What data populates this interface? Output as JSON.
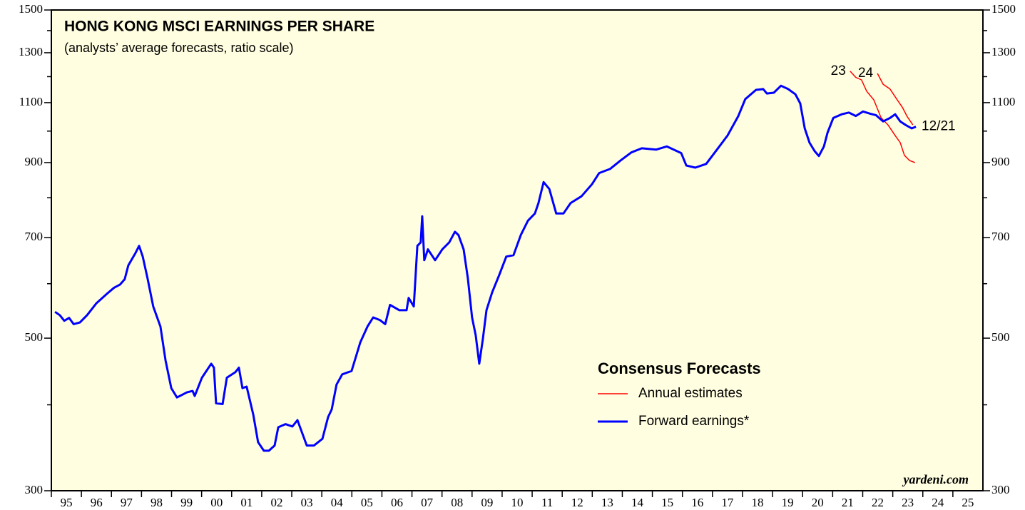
{
  "chart_data": {
    "type": "line",
    "title": "HONG KONG MSCI EARNINGS PER SHARE",
    "subtitle": "(analysts’ average forecasts, ratio scale)",
    "source": "yardeni.com",
    "legend_title": "Consensus Forecasts",
    "legend": "bottom-right",
    "log_scale": true,
    "background": "#fffee0",
    "xlim": [
      1995,
      2026
    ],
    "xticks": [
      {
        "value": 1995,
        "label": "95"
      },
      {
        "value": 1996,
        "label": "96"
      },
      {
        "value": 1997,
        "label": "97"
      },
      {
        "value": 1998,
        "label": "98"
      },
      {
        "value": 1999,
        "label": "99"
      },
      {
        "value": 2000,
        "label": "00"
      },
      {
        "value": 2001,
        "label": "01"
      },
      {
        "value": 2002,
        "label": "02"
      },
      {
        "value": 2003,
        "label": "03"
      },
      {
        "value": 2004,
        "label": "04"
      },
      {
        "value": 2005,
        "label": "05"
      },
      {
        "value": 2006,
        "label": "06"
      },
      {
        "value": 2007,
        "label": "07"
      },
      {
        "value": 2008,
        "label": "08"
      },
      {
        "value": 2009,
        "label": "09"
      },
      {
        "value": 2010,
        "label": "10"
      },
      {
        "value": 2011,
        "label": "11"
      },
      {
        "value": 2012,
        "label": "12"
      },
      {
        "value": 2013,
        "label": "13"
      },
      {
        "value": 2014,
        "label": "14"
      },
      {
        "value": 2015,
        "label": "15"
      },
      {
        "value": 2016,
        "label": "16"
      },
      {
        "value": 2017,
        "label": "17"
      },
      {
        "value": 2018,
        "label": "18"
      },
      {
        "value": 2019,
        "label": "19"
      },
      {
        "value": 2020,
        "label": "20"
      },
      {
        "value": 2021,
        "label": "21"
      },
      {
        "value": 2022,
        "label": "22"
      },
      {
        "value": 2023,
        "label": "23"
      },
      {
        "value": 2024,
        "label": "24"
      },
      {
        "value": 2025,
        "label": "25"
      }
    ],
    "ylim": [
      300,
      1500
    ],
    "yticks": [
      300,
      500,
      700,
      900,
      1100,
      1300,
      1500
    ],
    "yticks_minor": [
      400,
      600,
      800,
      1000,
      1200,
      1400
    ],
    "series": [
      {
        "name": "Annual estimates",
        "label": "23",
        "color": "#ff0000",
        "x": [
          2021.58,
          2021.77,
          2021.96,
          2022.13,
          2022.37,
          2022.61,
          2022.84,
          2023.08,
          2023.25,
          2023.39,
          2023.56,
          2023.74
        ],
        "values": [
          1222,
          1197,
          1187,
          1143,
          1110,
          1046,
          1021,
          985,
          962,
          922,
          906,
          900
        ]
      },
      {
        "label": "24",
        "color": "#ff0000",
        "x": [
          2022.49,
          2022.68,
          2022.91,
          2023.15,
          2023.32,
          2023.48,
          2023.67
        ],
        "values": [
          1213,
          1170,
          1151,
          1110,
          1083,
          1050,
          1021
        ]
      },
      {
        "name": "Forward earnings*",
        "label": "12/21",
        "color": "#0000ff",
        "x": [
          1995.12,
          1995.28,
          1995.43,
          1995.59,
          1995.74,
          1995.95,
          1996.19,
          1996.5,
          1996.85,
          1997.09,
          1997.28,
          1997.44,
          1997.56,
          1997.8,
          1997.92,
          1998.04,
          1998.2,
          1998.39,
          1998.63,
          1998.8,
          1998.99,
          1999.18,
          1999.51,
          1999.7,
          1999.77,
          2000.01,
          2000.32,
          2000.41,
          2000.48,
          2000.7,
          2000.84,
          2001.12,
          2001.24,
          2001.36,
          2001.5,
          2001.72,
          2001.88,
          2002.07,
          2002.24,
          2002.43,
          2002.55,
          2002.79,
          2003.02,
          2003.19,
          2003.5,
          2003.74,
          2004.02,
          2004.21,
          2004.33,
          2004.49,
          2004.68,
          2004.99,
          2005.28,
          2005.52,
          2005.71,
          2005.94,
          2006.11,
          2006.27,
          2006.58,
          2006.82,
          2006.89,
          2007.06,
          2007.18,
          2007.29,
          2007.34,
          2007.41,
          2007.53,
          2007.77,
          2008.01,
          2008.24,
          2008.43,
          2008.55,
          2008.72,
          2008.86,
          2009.0,
          2009.12,
          2009.24,
          2009.36,
          2009.48,
          2009.67,
          2009.9,
          2010.14,
          2010.38,
          2010.62,
          2010.86,
          2011.09,
          2011.21,
          2011.38,
          2011.57,
          2011.8,
          2012.04,
          2012.28,
          2012.64,
          2012.99,
          2013.23,
          2013.59,
          2013.94,
          2014.3,
          2014.65,
          2015.13,
          2015.48,
          2015.96,
          2016.13,
          2016.43,
          2016.79,
          2017.15,
          2017.5,
          2017.86,
          2018.09,
          2018.45,
          2018.69,
          2018.81,
          2019.04,
          2019.28,
          2019.52,
          2019.76,
          2019.92,
          2020.07,
          2020.23,
          2020.4,
          2020.54,
          2020.71,
          2020.83,
          2021.02,
          2021.3,
          2021.54,
          2021.77,
          2022.01,
          2022.25,
          2022.44,
          2022.68,
          2022.91,
          2023.08,
          2023.25,
          2023.44,
          2023.63,
          2023.77
        ],
        "values": [
          546,
          540,
          530,
          535,
          524,
          527,
          540,
          562,
          580,
          592,
          598,
          609,
          638,
          665,
          681,
          657,
          611,
          556,
          520,
          464,
          423,
          410,
          417,
          419,
          412,
          438,
          459,
          453,
          402,
          401,
          438,
          446,
          453,
          423,
          425,
          387,
          353,
          343,
          343,
          349,
          371,
          375,
          372,
          380,
          349,
          349,
          357,
          384,
          394,
          428,
          443,
          448,
          493,
          520,
          536,
          531,
          524,
          559,
          549,
          549,
          572,
          556,
          681,
          689,
          752,
          649,
          673,
          649,
          673,
          689,
          714,
          706,
          673,
          611,
          536,
          505,
          459,
          499,
          549,
          583,
          617,
          657,
          660,
          706,
          741,
          759,
          786,
          843,
          824,
          759,
          759,
          786,
          804,
          837,
          869,
          881,
          906,
          931,
          944,
          940,
          950,
          929,
          891,
          885,
          896,
          940,
          985,
          1052,
          1113,
          1148,
          1151,
          1134,
          1137,
          1164,
          1151,
          1131,
          1097,
          1009,
          962,
          935,
          920,
          950,
          995,
          1045,
          1058,
          1064,
          1052,
          1068,
          1060,
          1055,
          1033,
          1045,
          1058,
          1033,
          1020,
          1009,
          1015
        ]
      }
    ]
  }
}
